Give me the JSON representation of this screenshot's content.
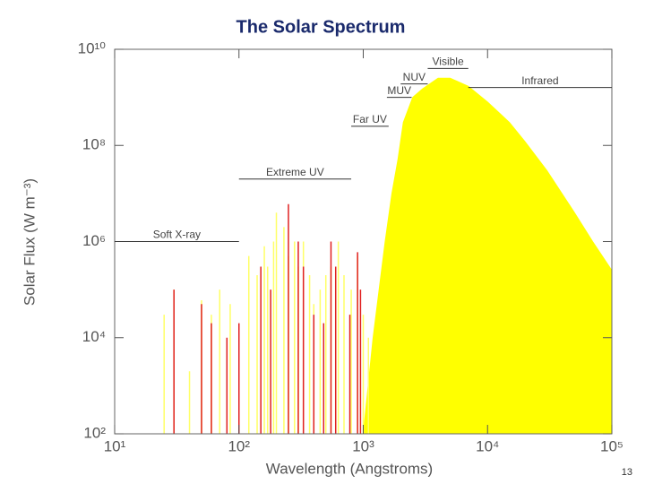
{
  "title": "The Solar Spectrum",
  "page_number": "13",
  "chart_data": {
    "type": "area",
    "xlabel": "Wavelength (Angstroms)",
    "ylabel": "Solar Flux (W m⁻³)",
    "xscale": "log",
    "yscale": "log",
    "xlim": [
      10,
      100000
    ],
    "ylim": [
      100,
      10000000000
    ],
    "xticks": [
      {
        "value": 10,
        "label": "10¹"
      },
      {
        "value": 100,
        "label": "10²"
      },
      {
        "value": 1000,
        "label": "10³"
      },
      {
        "value": 10000,
        "label": "10⁴"
      },
      {
        "value": 100000,
        "label": "10⁵"
      }
    ],
    "yticks": [
      {
        "value": 100,
        "label": "10²"
      },
      {
        "value": 10000,
        "label": "10⁴"
      },
      {
        "value": 1000000,
        "label": "10⁶"
      },
      {
        "value": 100000000,
        "label": "10⁸"
      },
      {
        "value": 10000000000,
        "label": "10¹⁰"
      }
    ],
    "series": [
      {
        "color": "#ffff00",
        "style": "area",
        "x": [
          1000,
          1200,
          1500,
          1700,
          1900,
          2100,
          2500,
          3000,
          4000,
          5000,
          7000,
          10000,
          15000,
          20000,
          30000,
          50000,
          70000,
          100000
        ],
        "values": [
          100,
          10000,
          1000000,
          10000000,
          50000000,
          300000000,
          1000000000,
          1500000000,
          2500000000,
          2500000000,
          1700000000,
          800000000,
          300000000,
          120000000,
          30000000,
          4000000,
          1000000,
          250000
        ]
      },
      {
        "color": "#ffff66",
        "style": "spikes",
        "x": [
          25,
          30,
          40,
          50,
          60,
          70,
          85,
          100,
          120,
          140,
          160,
          170,
          190,
          200,
          230,
          250,
          280,
          300,
          330,
          370,
          400,
          450,
          500,
          550,
          630,
          700,
          800,
          900,
          1000,
          1100
        ],
        "values": [
          30000,
          100000,
          2000,
          60000,
          30000,
          100000,
          50000,
          5000,
          500000,
          200000,
          800000,
          300000,
          1000000,
          4000000,
          2000000,
          500000,
          1000000,
          300000,
          1000000,
          200000,
          50000,
          100000,
          200000,
          300000,
          1000000,
          200000,
          100000,
          500000,
          30000,
          10000
        ]
      },
      {
        "color": "#e02020",
        "style": "spikes",
        "x": [
          30,
          50,
          60,
          80,
          100,
          150,
          180,
          250,
          300,
          330,
          400,
          480,
          550,
          600,
          780,
          900,
          950
        ],
        "values": [
          100000,
          50000,
          20000,
          10000,
          20000,
          300000,
          100000,
          6000000,
          1000000,
          300000,
          30000,
          20000,
          1000000,
          300000,
          30000,
          600000,
          100000
        ]
      }
    ],
    "annotations": [
      {
        "text": "Soft X-ray",
        "xrange": [
          10,
          100
        ],
        "y": 1000000
      },
      {
        "text": "Extreme UV",
        "xrange": [
          100,
          800
        ],
        "y": 20000000
      },
      {
        "text": "Far UV",
        "xrange": [
          800,
          1600
        ],
        "y": 250000000
      },
      {
        "text": "MUV",
        "xrange": [
          1550,
          2450
        ],
        "y": 1000000000
      },
      {
        "text": "NUV",
        "xrange": [
          2000,
          3300
        ],
        "y": 1900000000
      },
      {
        "text": "Visible",
        "xrange": [
          3300,
          7000
        ],
        "y": 4000000000
      },
      {
        "text": "Infrared",
        "xrange": [
          7000,
          100000
        ],
        "y": 1600000000
      }
    ]
  }
}
